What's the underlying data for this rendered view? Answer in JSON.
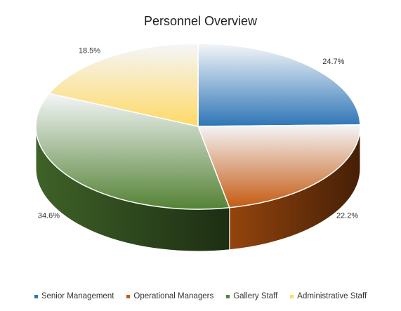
{
  "chart_data": {
    "type": "pie",
    "title": "Personnel Overview",
    "slices": [
      {
        "label": "Senior Management",
        "value": 24.7,
        "data_label": "24.7%",
        "color": "#2e75b6"
      },
      {
        "label": "Operational Managers",
        "value": 22.2,
        "data_label": "22.2%",
        "color": "#c55a11"
      },
      {
        "label": "Gallery Staff",
        "value": 34.6,
        "data_label": "34.6%",
        "color": "#548235"
      },
      {
        "label": "Administrative Staff",
        "value": 18.5,
        "data_label": "18.5%",
        "color": "#ffd966"
      }
    ],
    "legend_position": "bottom",
    "three_d": true
  }
}
